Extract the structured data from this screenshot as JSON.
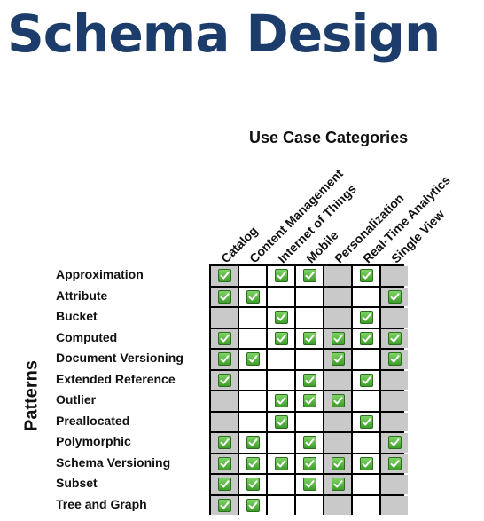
{
  "title": "Schema Design",
  "axis_title_top": "Use Case Categories",
  "axis_title_left": "Patterns",
  "columns": [
    "Catalog",
    "Content Management",
    "Internet of Things",
    "Mobile",
    "Personalization",
    "Real-Time Analytics",
    "Single View"
  ],
  "rows": [
    {
      "label": "Approximation",
      "checks": [
        1,
        0,
        1,
        1,
        0,
        1,
        0
      ]
    },
    {
      "label": "Attribute",
      "checks": [
        1,
        1,
        0,
        0,
        0,
        0,
        1
      ]
    },
    {
      "label": "Bucket",
      "checks": [
        0,
        0,
        1,
        0,
        0,
        1,
        0
      ]
    },
    {
      "label": "Computed",
      "checks": [
        1,
        0,
        1,
        1,
        1,
        1,
        1
      ]
    },
    {
      "label": "Document Versioning",
      "checks": [
        1,
        1,
        0,
        0,
        1,
        0,
        1
      ]
    },
    {
      "label": "Extended Reference",
      "checks": [
        1,
        0,
        0,
        1,
        0,
        1,
        0
      ]
    },
    {
      "label": "Outlier",
      "checks": [
        0,
        0,
        1,
        1,
        1,
        0,
        0
      ]
    },
    {
      "label": "Preallocated",
      "checks": [
        0,
        0,
        1,
        0,
        0,
        1,
        0
      ]
    },
    {
      "label": "Polymorphic",
      "checks": [
        1,
        1,
        0,
        1,
        0,
        0,
        1
      ]
    },
    {
      "label": "Schema Versioning",
      "checks": [
        1,
        1,
        1,
        1,
        1,
        1,
        1
      ]
    },
    {
      "label": "Subset",
      "checks": [
        1,
        1,
        0,
        1,
        1,
        0,
        0
      ]
    },
    {
      "label": "Tree and Graph",
      "checks": [
        1,
        1,
        0,
        0,
        0,
        0,
        0
      ]
    }
  ],
  "colors": {
    "title": "#1c3d6b",
    "shaded_column": "#c9c9c9",
    "check_green": "#4caf34"
  },
  "icons": {
    "check": "green-checkbox-icon"
  }
}
